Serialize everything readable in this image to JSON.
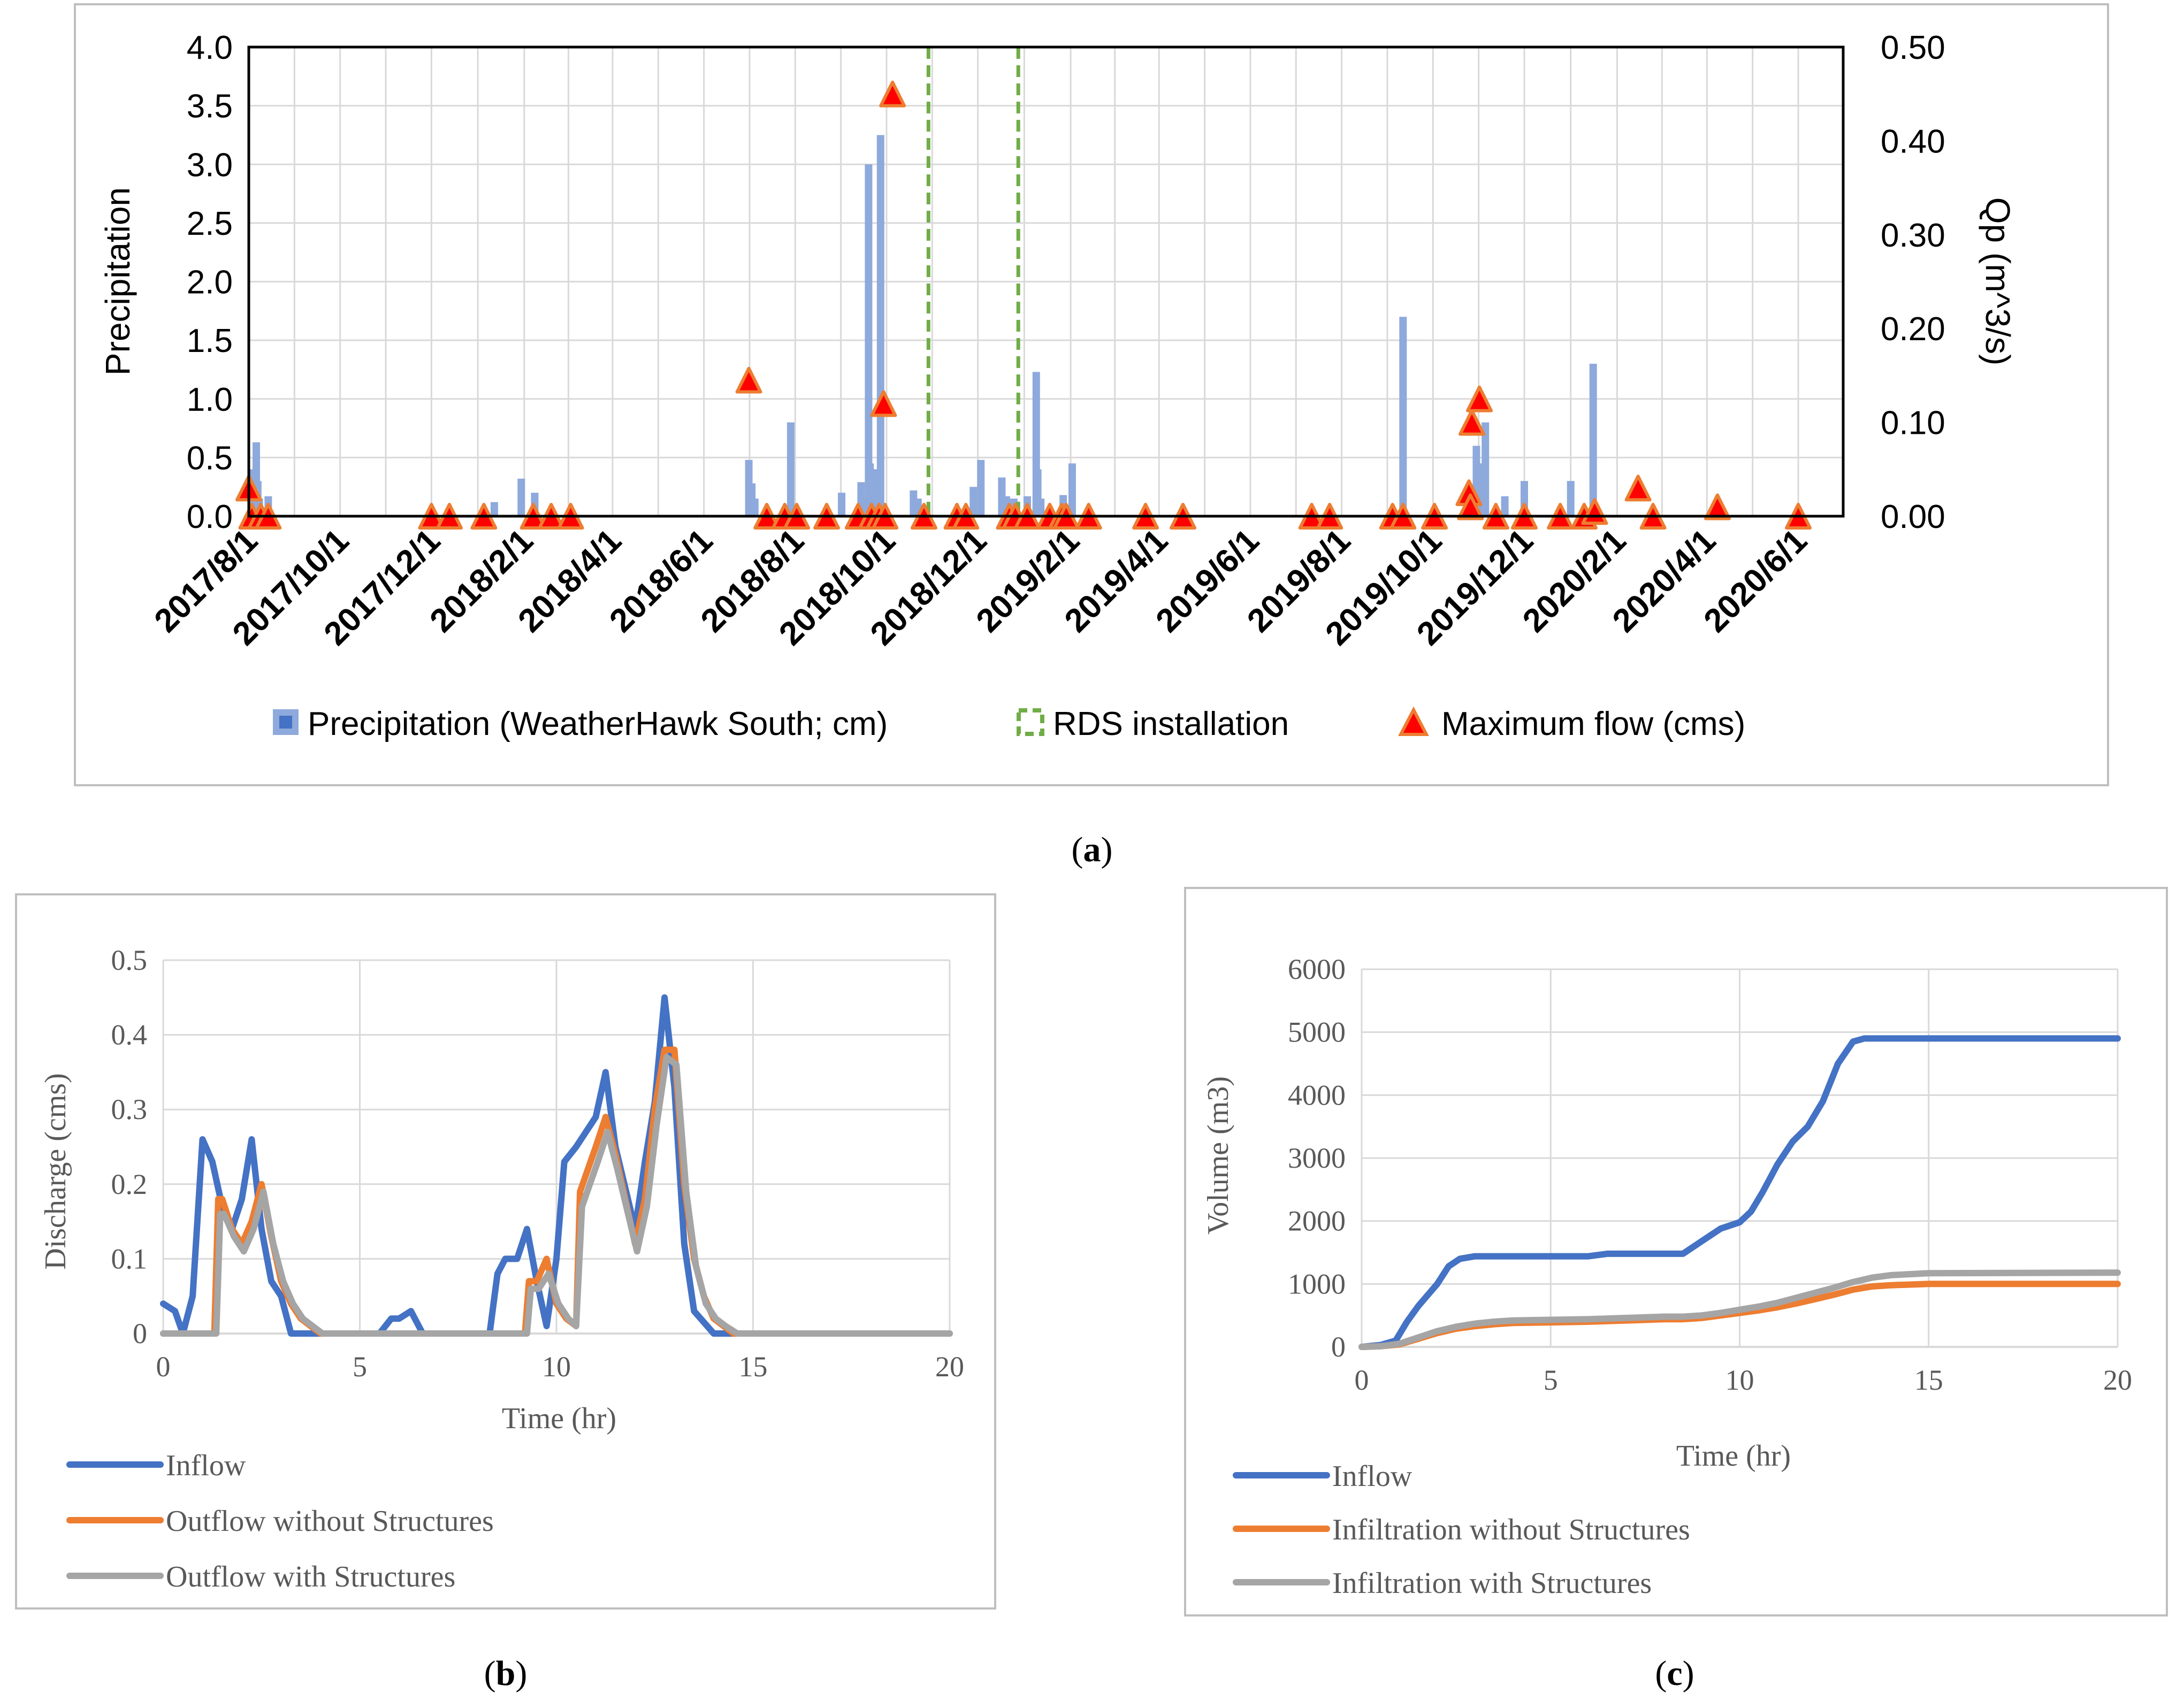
{
  "colors": {
    "precip": "#8EA9DB",
    "precip_legend": "#4472C4",
    "rds": "#70AD47",
    "triangle_fill": "#FF0000",
    "triangle_edge": "#ED7D31",
    "inflow": "#4472C4",
    "outflow_without": "#ED7D31",
    "outflow_with": "#A5A5A5",
    "grid": "#D9D9D9",
    "frame": "#BFBFBF"
  },
  "captions": {
    "a": "(a)",
    "a_letter": "a",
    "b": "(b)",
    "b_letter": "b",
    "c": "(c)",
    "c_letter": "c"
  },
  "chart_data": [
    {
      "id": "a",
      "type": "bar",
      "title": "",
      "ylabel": "Precipitation",
      "y2label": "Qp (m^3/s)",
      "ylim": [
        0,
        4.0
      ],
      "y2lim": [
        0,
        0.5
      ],
      "yticks": [
        "0.0",
        "0.5",
        "1.0",
        "1.5",
        "2.0",
        "2.5",
        "3.0",
        "3.5",
        "4.0"
      ],
      "y2ticks": [
        "0.00",
        "0.10",
        "0.20",
        "0.30",
        "0.40",
        "0.50"
      ],
      "xlim_days": [
        0,
        1065
      ],
      "xtick_labels": [
        "2017/8/1",
        "2017/10/1",
        "2017/12/1",
        "2018/2/1",
        "2018/4/1",
        "2018/6/1",
        "2018/8/1",
        "2018/10/1",
        "2018/12/1",
        "2019/2/1",
        "2019/4/1",
        "2019/6/1",
        "2019/8/1",
        "2019/10/1",
        "2019/12/1",
        "2020/2/1",
        "2020/4/1",
        "2020/6/1"
      ],
      "xtick_days": [
        0,
        61,
        122,
        184,
        243,
        304,
        365,
        426,
        487,
        549,
        608,
        669,
        730,
        791,
        852,
        914,
        974,
        1035
      ],
      "legend": {
        "precip": "Precipitation (WeatherHawk South; cm)",
        "rds": "RDS installation",
        "flow": "Maximum flow (cms)"
      },
      "precipitation": {
        "days": [
          3,
          5,
          6,
          7,
          13,
          164,
          182,
          191,
          334,
          336,
          338,
          362,
          396,
          409,
          411,
          414,
          415,
          416,
          418,
          420,
          422,
          444,
          447,
          484,
          489,
          503,
          506,
          511,
          520,
          526,
          526,
          527,
          529,
          544,
          550,
          771,
          820,
          822,
          826,
          839,
          852,
          883,
          898
        ],
        "values": [
          0.4,
          0.63,
          0.3,
          0.15,
          0.17,
          0.12,
          0.32,
          0.2,
          0.48,
          0.28,
          0.15,
          0.8,
          0.2,
          0.29,
          0.15,
          3.0,
          0.45,
          0.4,
          0.35,
          0.4,
          3.25,
          0.22,
          0.15,
          0.25,
          0.48,
          0.33,
          0.17,
          0.15,
          0.17,
          0.15,
          1.23,
          0.4,
          0.15,
          0.18,
          0.45,
          1.7,
          0.6,
          0.45,
          0.8,
          0.17,
          0.3,
          0.3,
          1.3
        ]
      },
      "rds_installation_days": [
        454,
        514
      ],
      "max_flow": {
        "days": [
          0,
          2,
          8,
          13,
          122,
          134,
          157,
          190,
          202,
          215,
          334,
          346,
          358,
          366,
          386,
          407,
          416,
          421,
          425,
          424,
          430,
          451,
          473,
          479,
          508,
          512,
          520,
          535,
          543,
          546,
          561,
          599,
          624,
          710,
          722,
          764,
          771,
          792,
          815,
          816,
          817,
          822,
          833,
          852,
          876,
          892,
          899,
          928,
          938,
          981,
          1035
        ],
        "values": [
          0.03,
          0.0,
          0.0,
          0.0,
          0.0,
          0.0,
          0.0,
          0.0,
          0.0,
          0.0,
          0.145,
          0.0,
          0.0,
          0.0,
          0.0,
          0.0,
          0.0,
          0.0,
          0.0,
          0.12,
          0.45,
          0.0,
          0.0,
          0.0,
          0.0,
          0.0,
          0.0,
          0.0,
          0.0,
          0.0,
          0.0,
          0.0,
          0.0,
          0.0,
          0.0,
          0.0,
          0.0,
          0.0,
          0.025,
          0.01,
          0.1,
          0.125,
          0.0,
          0.0,
          0.0,
          0.0,
          0.005,
          0.03,
          0.0,
          0.01,
          0.0
        ]
      }
    },
    {
      "id": "b",
      "type": "line",
      "title": "",
      "xlabel": "Time (hr)",
      "ylabel": "Discharge (cms)",
      "xlim": [
        0,
        20
      ],
      "ylim": [
        0,
        0.5
      ],
      "xticks": [
        "0",
        "5",
        "10",
        "15",
        "20"
      ],
      "yticks": [
        "0",
        "0.1",
        "0.2",
        "0.3",
        "0.4",
        "0.5"
      ],
      "series": [
        {
          "name": "Inflow",
          "x": [
            0,
            0.3,
            0.5,
            0.75,
            1.0,
            1.25,
            1.5,
            1.75,
            2.0,
            2.25,
            2.5,
            2.75,
            3.0,
            3.25,
            4.0,
            5.5,
            5.8,
            6.0,
            6.3,
            6.6,
            7.0,
            8.0,
            8.3,
            8.5,
            8.7,
            9.0,
            9.25,
            9.5,
            9.75,
            10.0,
            10.2,
            10.5,
            11.0,
            11.25,
            11.5,
            12.0,
            12.25,
            12.5,
            12.75,
            13.0,
            13.25,
            13.5,
            14.0,
            20
          ],
          "y": [
            0.04,
            0.03,
            0.0,
            0.05,
            0.26,
            0.23,
            0.17,
            0.14,
            0.18,
            0.26,
            0.14,
            0.07,
            0.05,
            0.0,
            0.0,
            0.0,
            0.02,
            0.02,
            0.03,
            0.0,
            0.0,
            0.0,
            0.0,
            0.08,
            0.1,
            0.1,
            0.14,
            0.07,
            0.01,
            0.1,
            0.23,
            0.25,
            0.29,
            0.35,
            0.25,
            0.14,
            0.23,
            0.31,
            0.45,
            0.33,
            0.12,
            0.03,
            0.0,
            0.0
          ]
        },
        {
          "name": "Outflow without Structures",
          "x": [
            0,
            1.3,
            1.4,
            1.5,
            1.75,
            2.0,
            2.25,
            2.5,
            2.75,
            3.0,
            3.25,
            3.5,
            3.75,
            4.0,
            4.2,
            9.2,
            9.3,
            9.5,
            9.75,
            10.0,
            10.25,
            10.5,
            10.6,
            11.0,
            11.25,
            11.5,
            12.0,
            12.25,
            12.5,
            12.75,
            13.0,
            13.25,
            13.5,
            13.75,
            14.0,
            14.25,
            14.5,
            20
          ],
          "y": [
            0,
            0,
            0.18,
            0.18,
            0.14,
            0.12,
            0.15,
            0.2,
            0.13,
            0.07,
            0.04,
            0.02,
            0.01,
            0.0,
            0.0,
            0.0,
            0.07,
            0.07,
            0.1,
            0.04,
            0.02,
            0.01,
            0.19,
            0.25,
            0.29,
            0.24,
            0.12,
            0.18,
            0.3,
            0.38,
            0.38,
            0.2,
            0.1,
            0.05,
            0.02,
            0.01,
            0.0,
            0.0
          ]
        },
        {
          "name": "Outflow with Structures",
          "x": [
            0,
            1.35,
            1.45,
            1.55,
            1.8,
            2.05,
            2.3,
            2.55,
            2.8,
            3.05,
            3.3,
            3.55,
            3.8,
            4.05,
            4.3,
            9.25,
            9.35,
            9.55,
            9.8,
            10.05,
            10.3,
            10.5,
            10.65,
            11.05,
            11.3,
            11.55,
            12.05,
            12.3,
            12.55,
            12.8,
            13.05,
            13.3,
            13.55,
            13.8,
            14.05,
            14.3,
            14.6,
            20
          ],
          "y": [
            0,
            0,
            0.16,
            0.16,
            0.13,
            0.11,
            0.14,
            0.19,
            0.12,
            0.07,
            0.04,
            0.02,
            0.01,
            0.0,
            0.0,
            0.0,
            0.06,
            0.06,
            0.08,
            0.04,
            0.02,
            0.01,
            0.17,
            0.23,
            0.27,
            0.22,
            0.11,
            0.17,
            0.28,
            0.37,
            0.36,
            0.19,
            0.09,
            0.04,
            0.02,
            0.01,
            0.0,
            0.0
          ]
        }
      ]
    },
    {
      "id": "c",
      "type": "line",
      "title": "",
      "xlabel": "Time (hr)",
      "ylabel": "Volume (m3)",
      "xlim": [
        0,
        20
      ],
      "ylim": [
        0,
        6000
      ],
      "xticks": [
        "0",
        "5",
        "10",
        "15",
        "20"
      ],
      "yticks": [
        "0",
        "1000",
        "2000",
        "3000",
        "4000",
        "5000",
        "6000"
      ],
      "series": [
        {
          "name": "Inflow",
          "x": [
            0,
            0.5,
            0.9,
            1.2,
            1.5,
            2.0,
            2.3,
            2.6,
            3.0,
            3.5,
            4.0,
            5.0,
            6.0,
            6.5,
            7.0,
            8.0,
            8.5,
            9.0,
            9.5,
            10.0,
            10.3,
            10.6,
            11.0,
            11.4,
            11.8,
            12.2,
            12.6,
            13.0,
            13.3,
            14.0,
            20
          ],
          "y": [
            0,
            30,
            100,
            400,
            650,
            1000,
            1280,
            1400,
            1440,
            1440,
            1440,
            1440,
            1440,
            1480,
            1480,
            1480,
            1480,
            1680,
            1880,
            1980,
            2150,
            2450,
            2900,
            3260,
            3500,
            3900,
            4500,
            4850,
            4900,
            4900,
            4900
          ]
        },
        {
          "name": "Infiltration without Structures",
          "x": [
            0,
            0.5,
            1.0,
            1.5,
            2.0,
            2.5,
            3.0,
            3.5,
            4.0,
            5.0,
            6.0,
            7.0,
            8.0,
            8.5,
            9.0,
            9.5,
            10.0,
            10.5,
            11.0,
            11.5,
            12.0,
            12.5,
            13.0,
            13.5,
            14.0,
            15.0,
            20
          ],
          "y": [
            0,
            10,
            40,
            130,
            220,
            290,
            330,
            360,
            380,
            390,
            400,
            420,
            440,
            440,
            460,
            500,
            540,
            580,
            630,
            690,
            760,
            830,
            910,
            960,
            980,
            1000,
            1000
          ]
        },
        {
          "name": "Infiltration with Structures",
          "x": [
            0,
            0.5,
            1.0,
            1.5,
            2.0,
            2.5,
            3.0,
            3.5,
            4.0,
            5.0,
            6.0,
            7.0,
            8.0,
            8.5,
            9.0,
            9.5,
            10.0,
            10.5,
            11.0,
            11.5,
            12.0,
            12.5,
            13.0,
            13.5,
            14.0,
            15.0,
            20
          ],
          "y": [
            0,
            10,
            50,
            150,
            250,
            320,
            370,
            400,
            420,
            430,
            440,
            460,
            480,
            480,
            500,
            540,
            590,
            640,
            700,
            780,
            860,
            940,
            1030,
            1100,
            1140,
            1170,
            1180
          ]
        }
      ]
    }
  ]
}
